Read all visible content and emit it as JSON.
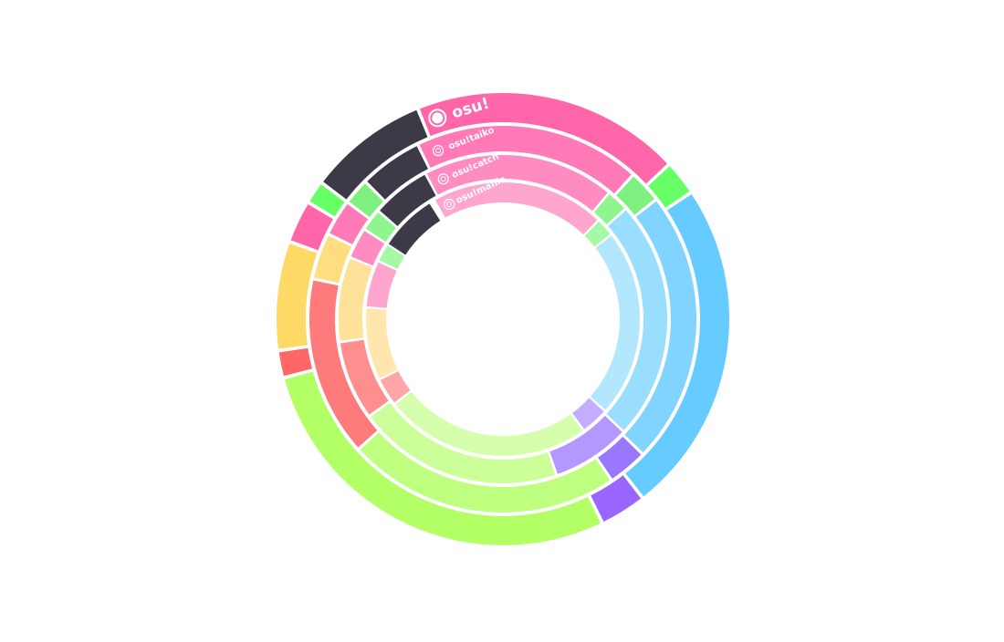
{
  "chart_data": {
    "type": "donut",
    "series": [
      {
        "name": "osu!",
        "icon": "osu-circle-icon",
        "segments": [
          {
            "color": "#ff66aa",
            "start": -22,
            "end": 47
          },
          {
            "color": "#66ff66",
            "start": 47,
            "end": 56
          },
          {
            "color": "#66ccff",
            "start": 56,
            "end": 142
          },
          {
            "color": "#9966ff",
            "start": 142,
            "end": 154
          },
          {
            "color": "#b3ff66",
            "start": 154,
            "end": 255
          },
          {
            "color": "#ff6666",
            "start": 255,
            "end": 262
          },
          {
            "color": "#ffd966",
            "start": 262,
            "end": 290
          },
          {
            "color": "#ff66aa",
            "start": 290,
            "end": 301
          },
          {
            "color": "#66ff66",
            "start": 301,
            "end": 307
          },
          {
            "color": "#3d3946",
            "start": 307,
            "end": 338
          }
        ]
      },
      {
        "name": "osu!taiko",
        "icon": "taiko-icon",
        "segments": [
          {
            "color": "#ff7ab6",
            "start": -26,
            "end": 42
          },
          {
            "color": "#7ff07f",
            "start": 42,
            "end": 52
          },
          {
            "color": "#80d4ff",
            "start": 52,
            "end": 134
          },
          {
            "color": "#9977ff",
            "start": 134,
            "end": 146
          },
          {
            "color": "#bfff80",
            "start": 146,
            "end": 228
          },
          {
            "color": "#ff7a7a",
            "start": 228,
            "end": 282
          },
          {
            "color": "#ffdd80",
            "start": 282,
            "end": 296
          },
          {
            "color": "#ff7ab6",
            "start": 296,
            "end": 307
          },
          {
            "color": "#7ff07f",
            "start": 307,
            "end": 315
          },
          {
            "color": "#3d3946",
            "start": 315,
            "end": 334
          }
        ]
      },
      {
        "name": "osu!catch",
        "icon": "catch-icon",
        "segments": [
          {
            "color": "#ff8cc0",
            "start": -28,
            "end": 40
          },
          {
            "color": "#8ff58f",
            "start": 40,
            "end": 48
          },
          {
            "color": "#99ddff",
            "start": 48,
            "end": 133
          },
          {
            "color": "#b399ff",
            "start": 133,
            "end": 161
          },
          {
            "color": "#ccff99",
            "start": 161,
            "end": 234
          },
          {
            "color": "#ff8f8f",
            "start": 234,
            "end": 262
          },
          {
            "color": "#ffe299",
            "start": 262,
            "end": 292
          },
          {
            "color": "#ff8cc0",
            "start": 292,
            "end": 303
          },
          {
            "color": "#8ff58f",
            "start": 303,
            "end": 311
          },
          {
            "color": "#3d3946",
            "start": 311,
            "end": 332
          }
        ]
      },
      {
        "name": "osu!mania",
        "icon": "mania-icon",
        "segments": [
          {
            "color": "#ffa6cf",
            "start": -30,
            "end": 44
          },
          {
            "color": "#a6f7a6",
            "start": 44,
            "end": 52
          },
          {
            "color": "#b3e6ff",
            "start": 52,
            "end": 132
          },
          {
            "color": "#c2adff",
            "start": 132,
            "end": 144
          },
          {
            "color": "#d6ffad",
            "start": 144,
            "end": 232
          },
          {
            "color": "#ffa6a6",
            "start": 232,
            "end": 244
          },
          {
            "color": "#ffe6ad",
            "start": 244,
            "end": 275
          },
          {
            "color": "#ffa6cf",
            "start": 275,
            "end": 295
          },
          {
            "color": "#a6f7a6",
            "start": 295,
            "end": 303
          },
          {
            "color": "#3d3946",
            "start": 303,
            "end": 328
          }
        ]
      }
    ],
    "angle_units": "degrees clockwise from 12 o'clock"
  }
}
